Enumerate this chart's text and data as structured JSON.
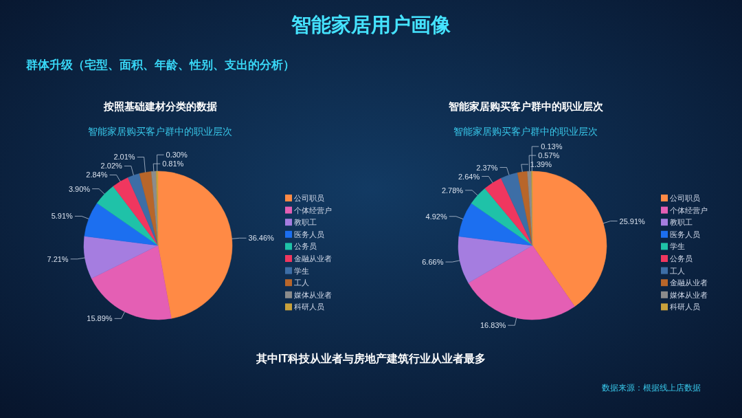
{
  "chart_data": [
    {
      "type": "pie",
      "title": "按照基础建材分类的数据",
      "subtitle": "智能家居购买客户群中的职业层次",
      "annotations": [
        "智能家居用户画像",
        "群体升级（宅型、面积、年龄、性别、支出的分析）",
        "其中IT科技从业者与房地产建筑行业从业者最多",
        "数据来源：根据线上店数据"
      ],
      "categories": [
        "公司职员",
        "个体经营户",
        "教职工",
        "医务人员",
        "公务员",
        "金融从业者",
        "学生",
        "工人",
        "媒体从业者",
        "科研人员"
      ],
      "values": [
        36.46,
        15.89,
        7.21,
        5.91,
        3.9,
        2.84,
        2.02,
        2.01,
        0.81,
        0.3
      ],
      "value_labels": [
        "36.46%",
        "15.89%",
        "7.21%",
        "5.91%",
        "3.90%",
        "2.84%",
        "2.02%",
        "2.01%",
        "0.81%",
        "0.30%"
      ],
      "colors": [
        "#ff8a45",
        "#e45fb4",
        "#a57de0",
        "#1c6ff0",
        "#1fc2a8",
        "#f0375f",
        "#3d6ea6",
        "#b8662a",
        "#8c8c8c",
        "#c9a13b"
      ],
      "legend": "right"
    },
    {
      "type": "pie",
      "title": "智能家居购买客户群中的职业层次",
      "subtitle": "智能家居购买客户群中的职业层次",
      "categories": [
        "公司职员",
        "个体经营户",
        "教职工",
        "医务人员",
        "学生",
        "公务员",
        "工人",
        "金融从业者",
        "媒体从业者",
        "科研人员"
      ],
      "values": [
        25.91,
        16.83,
        6.66,
        4.92,
        2.78,
        2.64,
        2.37,
        1.39,
        0.57,
        0.13
      ],
      "value_labels": [
        "25.91%",
        "16.83%",
        "6.66%",
        "4.92%",
        "2.78%",
        "2.64%",
        "2.37%",
        "1.39%",
        "0.57%",
        "0.13%"
      ],
      "colors": [
        "#ff8a45",
        "#e45fb4",
        "#a57de0",
        "#1c6ff0",
        "#1fc2a8",
        "#f0375f",
        "#3d6ea6",
        "#b8662a",
        "#8c8c8c",
        "#c9a13b"
      ],
      "legend": "right"
    }
  ]
}
